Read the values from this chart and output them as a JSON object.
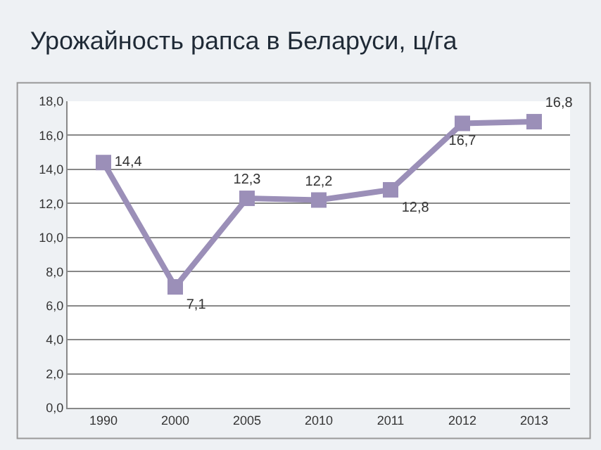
{
  "chart_data": {
    "type": "line",
    "title": "Урожайность рапса в Беларуси, ц/га",
    "categories": [
      "1990",
      "2000",
      "2005",
      "2010",
      "2011",
      "2012",
      "2013"
    ],
    "series": [
      {
        "color": "#9b8fb8",
        "values": [
          14.4,
          7.1,
          12.3,
          12.2,
          12.8,
          16.7,
          16.8
        ],
        "value_labels": [
          "14,4",
          "7,1",
          "12,3",
          "12,2",
          "12,8",
          "16,7",
          "16,8"
        ]
      }
    ],
    "ylim": [
      0,
      18
    ],
    "yticks": [
      {
        "value": 0,
        "label": "0,0"
      },
      {
        "value": 2,
        "label": "2,0"
      },
      {
        "value": 4,
        "label": "4,0"
      },
      {
        "value": 6,
        "label": "6,0"
      },
      {
        "value": 8,
        "label": "8,0"
      },
      {
        "value": 10,
        "label": "10,0"
      },
      {
        "value": 12,
        "label": "12,0"
      },
      {
        "value": 14,
        "label": "14,0"
      },
      {
        "value": 16,
        "label": "16,0"
      },
      {
        "value": 18,
        "label": "18,0"
      }
    ],
    "grid": "y",
    "marker": "square",
    "line_style": "solid"
  }
}
